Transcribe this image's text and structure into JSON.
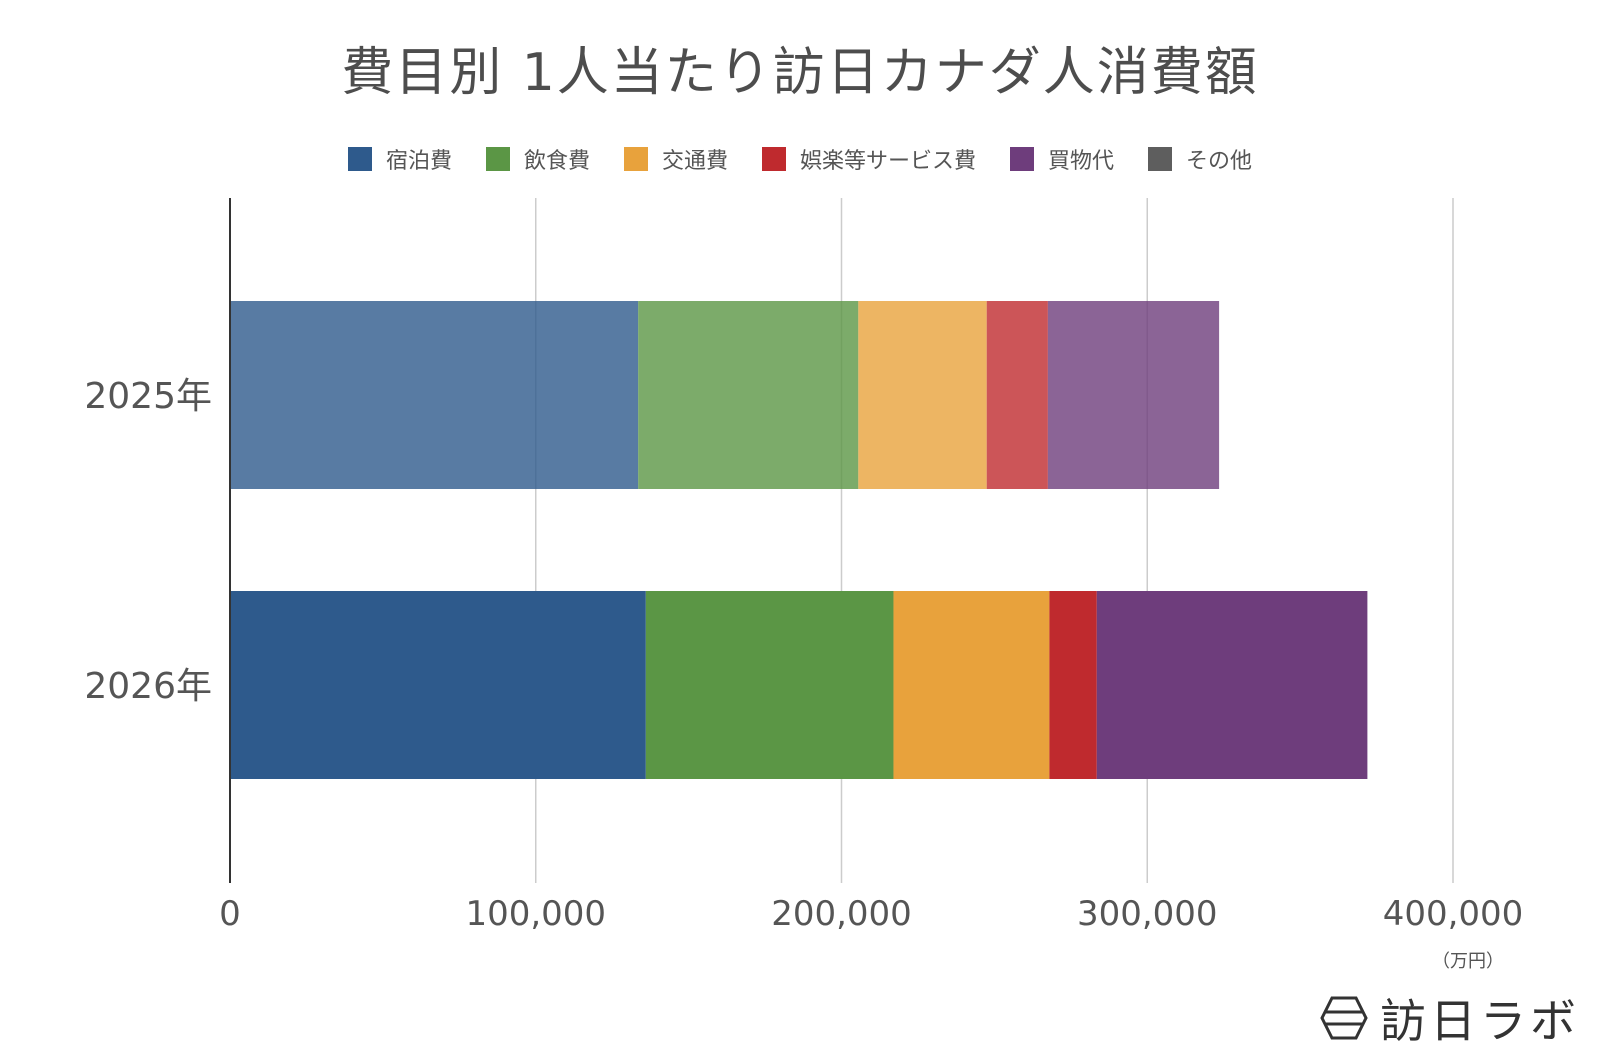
{
  "title": "費目別 1人当たり訪日カナダ人消費額",
  "unit": "（万円）",
  "brand": {
    "name": "訪日ラボ"
  },
  "legend": [
    {
      "label": "宿泊費",
      "color": "#2e5a8c"
    },
    {
      "label": "飲食費",
      "color": "#5b9645"
    },
    {
      "label": "交通費",
      "color": "#e8a23c"
    },
    {
      "label": "娯楽等サービス費",
      "color": "#bf2a2e"
    },
    {
      "label": "買物代",
      "color": "#6e3d7c"
    },
    {
      "label": "その他",
      "color": "#5e5e5e"
    }
  ],
  "chart_data": {
    "type": "bar",
    "orientation": "horizontal",
    "stacked": true,
    "title": "費目別 1人当たり訪日カナダ人消費額",
    "categories": [
      "2025年",
      "2026年"
    ],
    "series": [
      {
        "name": "宿泊費",
        "color": "#2e5a8c",
        "values": [
          133500,
          136000
        ]
      },
      {
        "name": "飲食費",
        "color": "#5b9645",
        "values": [
          72000,
          81000
        ]
      },
      {
        "name": "交通費",
        "color": "#e8a23c",
        "values": [
          42000,
          51000
        ]
      },
      {
        "name": "娯楽等サービス費",
        "color": "#bf2a2e",
        "values": [
          20000,
          15500
        ]
      },
      {
        "name": "買物代",
        "color": "#6e3d7c",
        "values": [
          56000,
          88500
        ]
      },
      {
        "name": "その他",
        "color": "#5e5e5e",
        "values": [
          0,
          0
        ]
      }
    ],
    "category_opacity": [
      0.8,
      1.0
    ],
    "xlim": [
      0,
      400000
    ],
    "xticks": [
      0,
      100000,
      200000,
      300000,
      400000
    ],
    "xtick_labels": [
      "0",
      "100,000",
      "200,000",
      "300,000",
      "400,000"
    ],
    "grid": true,
    "legend_position": "top"
  }
}
